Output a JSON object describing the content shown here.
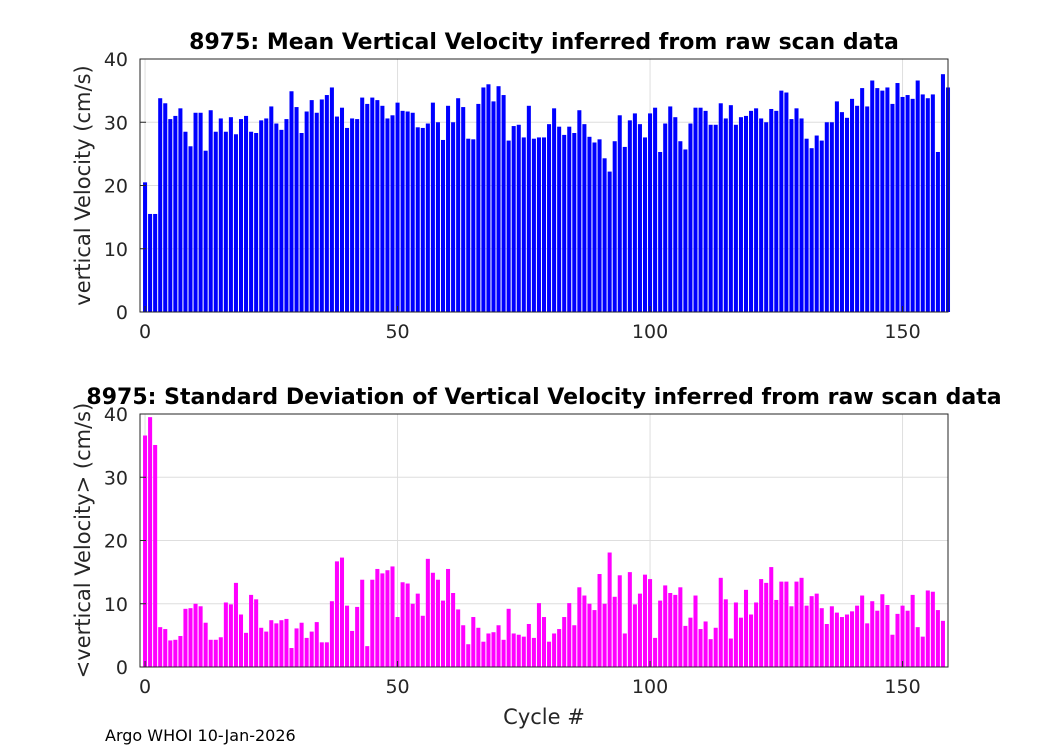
{
  "footer": "Argo WHOI 10-Jan-2026",
  "chart_data": [
    {
      "type": "bar",
      "title": "8975: Mean Vertical Velocity inferred from raw scan data",
      "xlabel": "",
      "ylabel": "vertical Velocity (cm/s)",
      "xlim": [
        -1,
        159
      ],
      "ylim": [
        0,
        40
      ],
      "xticks": [
        0,
        50,
        100,
        150
      ],
      "yticks": [
        0,
        10,
        20,
        30,
        40
      ],
      "grid": true,
      "color": "#0000ff",
      "x_start": 0,
      "values": [
        20.5,
        15.5,
        15.5,
        33.8,
        33,
        30.5,
        31,
        32.2,
        28.5,
        26.2,
        31.5,
        31.5,
        25.5,
        31.9,
        28.5,
        30.6,
        28.5,
        30.8,
        28.1,
        30.5,
        31,
        28.5,
        28.3,
        30.3,
        30.6,
        32.5,
        29.8,
        28.8,
        30.5,
        34.9,
        32.4,
        28.3,
        31.7,
        33.5,
        31.5,
        33.6,
        34.3,
        35.5,
        30.9,
        32.3,
        29.1,
        30.6,
        30.5,
        33.9,
        32.9,
        33.9,
        33.5,
        32.6,
        30.6,
        31.1,
        33.1,
        31.8,
        31.7,
        31.5,
        29.2,
        29.1,
        29.8,
        33.1,
        30,
        27.2,
        32.6,
        30,
        33.8,
        32.4,
        27.4,
        27.3,
        32.9,
        35.5,
        36,
        33.3,
        35.7,
        34.3,
        27.1,
        29.4,
        29.6,
        27.6,
        32.6,
        27.4,
        27.6,
        27.6,
        29.7,
        32.2,
        29.3,
        28,
        29.3,
        28.3,
        31.9,
        29.7,
        27.7,
        26.8,
        27.3,
        24.3,
        22.2,
        27,
        31.1,
        26.1,
        30.3,
        31.4,
        29.7,
        27.6,
        31.4,
        32.3,
        25.3,
        29.8,
        32.5,
        30.8,
        27,
        25.7,
        29.8,
        32.3,
        32.3,
        31.8,
        29.6,
        29.6,
        33,
        30.6,
        32.7,
        29.6,
        30.8,
        31,
        31.8,
        32.2,
        30.6,
        30,
        32.1,
        31.8,
        35,
        34.7,
        30.5,
        32.2,
        30.6,
        27.4,
        25.9,
        27.9,
        27.1,
        30,
        30,
        33.3,
        31.6,
        30.7,
        33.7,
        32.6,
        35.4,
        32.5,
        36.6,
        35.4,
        35,
        35.5,
        32.9,
        36.2,
        34,
        34.3,
        33.7,
        36.6,
        34.4,
        33.8,
        34.4,
        25.3,
        37.6,
        35.5
      ]
    },
    {
      "type": "bar",
      "title": "8975: Standard Deviation of Vertical Velocity inferred from raw scan data",
      "xlabel": "Cycle #",
      "ylabel": "<vertical Velocity> (cm/s)",
      "xlim": [
        -1,
        159
      ],
      "ylim": [
        0,
        40
      ],
      "xticks": [
        0,
        50,
        100,
        150
      ],
      "yticks": [
        0,
        10,
        20,
        30,
        40
      ],
      "grid": true,
      "color": "#ff00ff",
      "x_start": 0,
      "values": [
        36.6,
        39.5,
        35.1,
        6.3,
        6,
        4.2,
        4.3,
        4.9,
        9.2,
        9.3,
        10,
        9.6,
        7,
        4.3,
        4.3,
        4.7,
        10.2,
        9.9,
        13.3,
        8.3,
        5.4,
        11.4,
        10.7,
        6.2,
        5.6,
        7.4,
        6.9,
        7.4,
        7.6,
        3,
        6.1,
        7,
        4.6,
        5.6,
        7.1,
        3.9,
        3.9,
        10.4,
        16.7,
        17.3,
        9.7,
        5.7,
        9.5,
        13.8,
        3.3,
        13.8,
        15.5,
        14.8,
        15.3,
        15.9,
        7.9,
        13.4,
        13.2,
        10,
        11.6,
        8.1,
        17.1,
        14.9,
        13.8,
        10.5,
        15.5,
        11.7,
        9.1,
        6.6,
        3.6,
        7.9,
        6.2,
        4,
        5.3,
        5.5,
        6.6,
        4.3,
        9.2,
        5.3,
        5.1,
        4.8,
        6.8,
        4.6,
        10.1,
        7.9,
        4,
        5.3,
        6,
        7.9,
        10.1,
        6.6,
        12.6,
        11.3,
        10,
        9,
        14.7,
        10,
        18.1,
        11.1,
        14.5,
        5.3,
        15,
        9.9,
        11.6,
        14.6,
        13.9,
        4.6,
        10.5,
        12.9,
        11.7,
        11.4,
        12.6,
        6.5,
        7.8,
        11.3,
        6,
        7.2,
        4.4,
        6.2,
        14.1,
        10.7,
        4.5,
        10.2,
        7.8,
        12.2,
        8.3,
        10.2,
        13.9,
        13.3,
        15.8,
        10.6,
        13.5,
        13.5,
        9.6,
        13.5,
        14.1,
        9.7,
        11.2,
        11.6,
        9.3,
        6.8,
        9.6,
        8.6,
        7.9,
        8.3,
        8.8,
        9.7,
        11.3,
        6.9,
        10.4,
        8.9,
        11.5,
        9.8,
        5.1,
        8.4,
        9.7,
        8.9,
        11.4,
        6.3,
        4.8,
        12.1,
        11.9,
        9,
        7.3
      ]
    }
  ]
}
